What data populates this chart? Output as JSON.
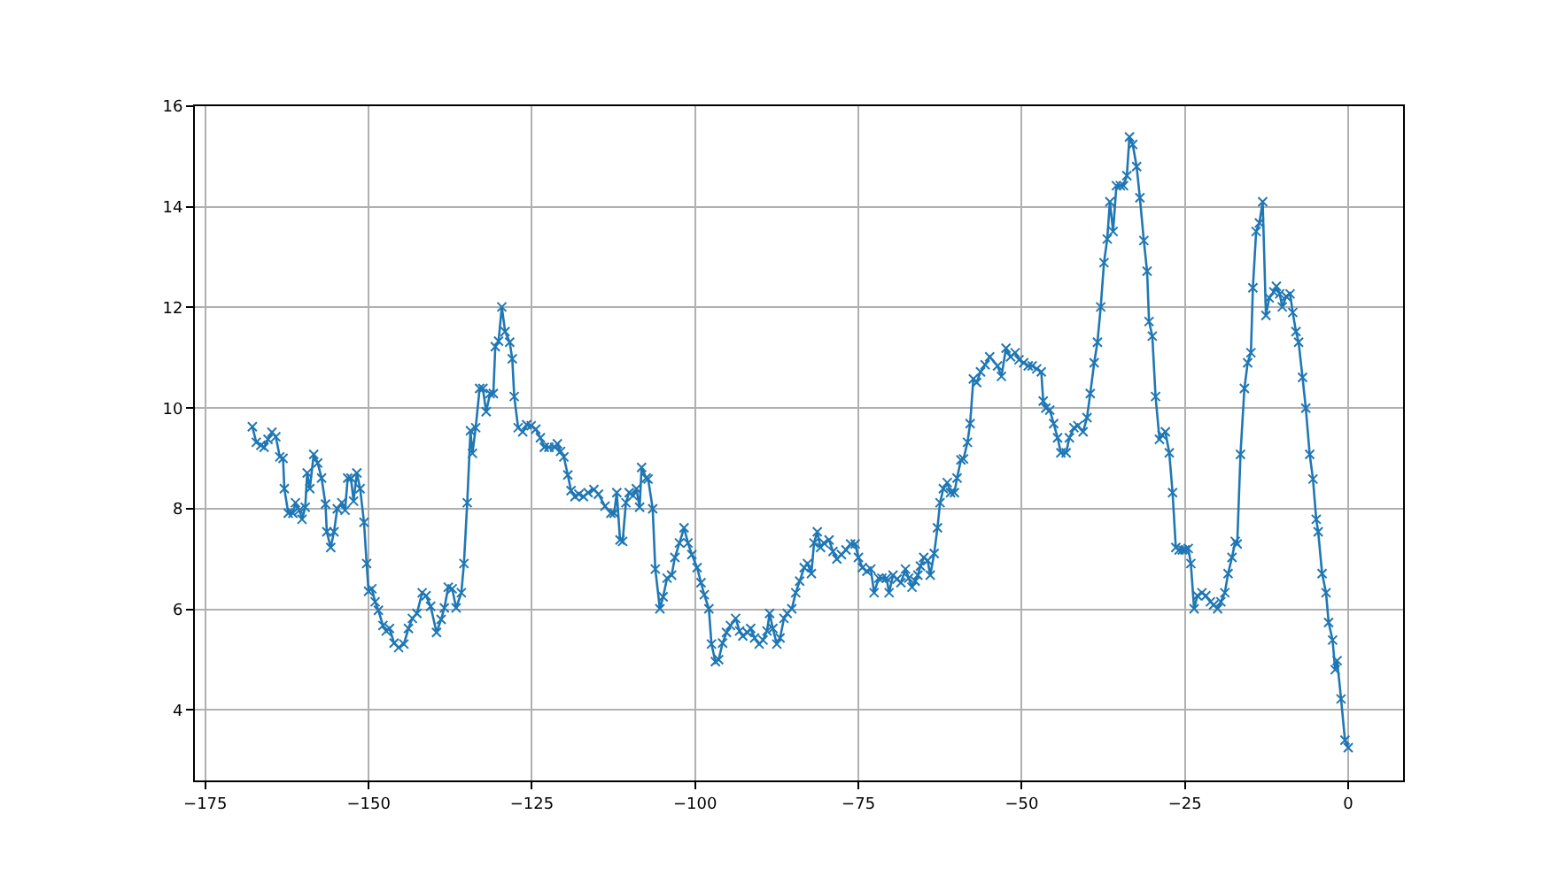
{
  "chart_data": {
    "type": "line",
    "marker": "cross",
    "line_style": "solid",
    "grid": true,
    "xlim": [
      -176.6,
      8.4
    ],
    "xticks": [
      {
        "value": -175,
        "label": "−175"
      },
      {
        "value": -150,
        "label": "−150"
      },
      {
        "value": -125,
        "label": "−125"
      },
      {
        "value": -100,
        "label": "−100"
      },
      {
        "value": -75,
        "label": "−75"
      },
      {
        "value": -50,
        "label": "−50"
      },
      {
        "value": -25,
        "label": "−25"
      },
      0
    ],
    "ylim": [
      2.6,
      16
    ],
    "yticks": [
      4,
      6,
      8,
      10,
      12,
      14,
      16
    ],
    "series": [
      {
        "color": "#1f77b4",
        "x": [
          -167.8,
          -167.2,
          -166.5,
          -166,
          -165.4,
          -164.8,
          -164.2,
          -163.6,
          -163.1,
          -162.9,
          -162.3,
          -161.6,
          -161.2,
          -160.6,
          -160.2,
          -159.7,
          -159.4,
          -159,
          -158.4,
          -157.8,
          -157.2,
          -156.6,
          -156.4,
          -155.8,
          -155.3,
          -154.8,
          -154.1,
          -153.6,
          -153.2,
          -152.7,
          -152.3,
          -151.8,
          -151.3,
          -150.7,
          -150.3,
          -150,
          -149.5,
          -149,
          -148.5,
          -147.8,
          -147.3,
          -146.8,
          -146.1,
          -145.4,
          -144.6,
          -143.9,
          -143.3,
          -142.6,
          -141.8,
          -141.2,
          -140.5,
          -139.6,
          -138.9,
          -138.4,
          -137.8,
          -137.2,
          -136.6,
          -135.8,
          -135.4,
          -134.9,
          -134.4,
          -134.1,
          -133.6,
          -133,
          -132.5,
          -132,
          -131.4,
          -130.9,
          -130.6,
          -130.1,
          -129.6,
          -129.1,
          -128.4,
          -128,
          -127.7,
          -127.1,
          -126.4,
          -125.8,
          -125.1,
          -124.4,
          -123.7,
          -123.1,
          -122.4,
          -121.5,
          -121.1,
          -120.6,
          -120.1,
          -119.5,
          -119,
          -118.4,
          -117.8,
          -117.1,
          -116.4,
          -115.5,
          -114.8,
          -113.8,
          -112.9,
          -112.4,
          -112,
          -111.5,
          -111.1,
          -110.6,
          -110.1,
          -109.5,
          -109,
          -108.5,
          -108.2,
          -107.5,
          -107.2,
          -106.5,
          -106.1,
          -105.4,
          -104.9,
          -104.3,
          -103.6,
          -103.1,
          -102.4,
          -101.7,
          -101.1,
          -100.5,
          -99.7,
          -99.1,
          -98.6,
          -97.9,
          -97.5,
          -96.9,
          -96.4,
          -95.8,
          -95.2,
          -94.6,
          -93.8,
          -93.2,
          -92.7,
          -92,
          -91.5,
          -90.9,
          -90.2,
          -89.6,
          -89,
          -88.6,
          -88.1,
          -87.5,
          -87,
          -86.4,
          -85.9,
          -85.2,
          -84.6,
          -84,
          -83.3,
          -82.8,
          -82.2,
          -81.8,
          -81.3,
          -80.8,
          -80.3,
          -79.5,
          -78.9,
          -78.3,
          -77.6,
          -76.9,
          -76.2,
          -75.5,
          -75,
          -74.4,
          -73.7,
          -73.1,
          -72.6,
          -71.9,
          -71.4,
          -70.7,
          -70.3,
          -69.7,
          -69.1,
          -68.5,
          -67.8,
          -67.3,
          -66.8,
          -66.3,
          -65.9,
          -65.5,
          -65,
          -64.4,
          -64,
          -63.4,
          -62.9,
          -62.5,
          -62,
          -61.4,
          -60.9,
          -60.3,
          -59.9,
          -59.3,
          -58.9,
          -58.3,
          -57.9,
          -57.4,
          -56.9,
          -56.3,
          -55.6,
          -54.9,
          -53.7,
          -53.1,
          -52.4,
          -51.7,
          -51,
          -50.4,
          -49.7,
          -49,
          -48.4,
          -47.7,
          -47,
          -46.7,
          -46.3,
          -45.7,
          -45.1,
          -44.5,
          -44,
          -43.2,
          -42.7,
          -42,
          -41.4,
          -40.6,
          -40,
          -39.5,
          -38.9,
          -38.4,
          -37.9,
          -37.4,
          -36.9,
          -36.5,
          -36,
          -35.5,
          -34.9,
          -34.4,
          -33.9,
          -33.5,
          -33,
          -32.4,
          -31.9,
          -31.3,
          -30.8,
          -30.5,
          -30,
          -29.5,
          -28.9,
          -28.5,
          -28,
          -27.4,
          -26.9,
          -26.4,
          -25.9,
          -25.4,
          -25,
          -24.5,
          -24.1,
          -23.6,
          -23.1,
          -22.4,
          -21.8,
          -21.1,
          -20.6,
          -20,
          -19.5,
          -18.9,
          -18.4,
          -17.8,
          -17.3,
          -17,
          -16.5,
          -15.9,
          -15.4,
          -14.9,
          -14.6,
          -14.1,
          -13.6,
          -13.1,
          -12.6,
          -12.1,
          -11.4,
          -11,
          -10.5,
          -10.1,
          -9.5,
          -8.9,
          -8.5,
          -8,
          -7.6,
          -7,
          -6.5,
          -5.9,
          -5.4,
          -4.9,
          -4.6,
          -4,
          -3.4,
          -3,
          -2.4,
          -2,
          -1.7,
          -1.1,
          -0.5,
          0
        ],
        "values": [
          9.63,
          9.32,
          9.26,
          9.22,
          9.38,
          9.52,
          9.43,
          9.03,
          9.0,
          8.4,
          7.91,
          7.91,
          8.12,
          7.97,
          7.79,
          8.03,
          8.71,
          8.4,
          9.08,
          8.91,
          8.61,
          8.09,
          7.54,
          7.23,
          7.54,
          8.0,
          8.12,
          7.97,
          8.61,
          8.61,
          8.15,
          8.71,
          8.4,
          7.73,
          6.91,
          6.36,
          6.41,
          6.15,
          5.98,
          5.68,
          5.57,
          5.62,
          5.33,
          5.24,
          5.31,
          5.62,
          5.82,
          5.92,
          6.33,
          6.27,
          6.06,
          5.54,
          5.8,
          6.03,
          6.44,
          6.41,
          6.03,
          6.33,
          6.91,
          8.12,
          9.55,
          9.1,
          9.61,
          10.39,
          10.39,
          9.93,
          10.29,
          10.29,
          11.22,
          11.33,
          12.01,
          11.52,
          11.31,
          10.98,
          10.23,
          9.61,
          9.53,
          9.67,
          9.65,
          9.58,
          9.41,
          9.22,
          9.22,
          9.22,
          9.29,
          9.14,
          9.03,
          8.67,
          8.36,
          8.24,
          8.29,
          8.24,
          8.32,
          8.38,
          8.29,
          8.05,
          7.91,
          7.91,
          8.32,
          7.38,
          7.35,
          8.12,
          8.32,
          8.26,
          8.4,
          8.03,
          8.82,
          8.61,
          8.59,
          8.0,
          6.8,
          6.01,
          6.25,
          6.62,
          6.68,
          7.03,
          7.32,
          7.62,
          7.32,
          7.09,
          6.83,
          6.53,
          6.29,
          6.01,
          5.31,
          4.96,
          5.0,
          5.33,
          5.54,
          5.68,
          5.82,
          5.57,
          5.47,
          5.54,
          5.62,
          5.43,
          5.31,
          5.39,
          5.57,
          5.92,
          5.62,
          5.31,
          5.43,
          5.82,
          5.92,
          6.01,
          6.33,
          6.56,
          6.83,
          6.91,
          6.71,
          7.32,
          7.54,
          7.23,
          7.32,
          7.38,
          7.15,
          7.0,
          7.09,
          7.18,
          7.3,
          7.3,
          7.03,
          6.83,
          6.76,
          6.8,
          6.33,
          6.62,
          6.62,
          6.62,
          6.33,
          6.68,
          6.6,
          6.53,
          6.8,
          6.62,
          6.44,
          6.56,
          6.68,
          6.86,
          7.03,
          6.97,
          6.68,
          7.11,
          7.62,
          8.12,
          8.4,
          8.52,
          8.32,
          8.32,
          8.61,
          8.97,
          8.99,
          9.32,
          9.69,
          10.58,
          10.51,
          10.72,
          10.86,
          11.02,
          10.84,
          10.63,
          11.19,
          11.02,
          11.1,
          10.96,
          10.9,
          10.84,
          10.84,
          10.78,
          10.72,
          10.14,
          10.0,
          9.96,
          9.69,
          9.41,
          9.11,
          9.11,
          9.41,
          9.61,
          9.65,
          9.53,
          9.81,
          10.29,
          10.9,
          11.31,
          12.01,
          12.89,
          13.36,
          14.1,
          13.51,
          14.42,
          14.42,
          14.42,
          14.62,
          15.39,
          15.24,
          14.8,
          14.18,
          13.33,
          12.72,
          11.72,
          11.43,
          10.23,
          9.38,
          9.46,
          9.53,
          9.11,
          8.32,
          7.23,
          7.18,
          7.18,
          7.18,
          7.21,
          6.91,
          6.01,
          6.27,
          6.33,
          6.27,
          6.15,
          6.09,
          6.01,
          6.15,
          6.33,
          6.71,
          7.03,
          7.35,
          7.3,
          9.08,
          10.39,
          10.9,
          11.1,
          12.39,
          13.51,
          13.68,
          14.1,
          11.84,
          12.19,
          12.31,
          12.42,
          12.27,
          12.01,
          12.22,
          12.27,
          11.9,
          11.52,
          11.31,
          10.61,
          10.0,
          9.08,
          8.59,
          7.79,
          7.54,
          6.71,
          6.33,
          5.74,
          5.39,
          4.8,
          4.98,
          4.22,
          3.4,
          3.25
        ]
      }
    ]
  }
}
